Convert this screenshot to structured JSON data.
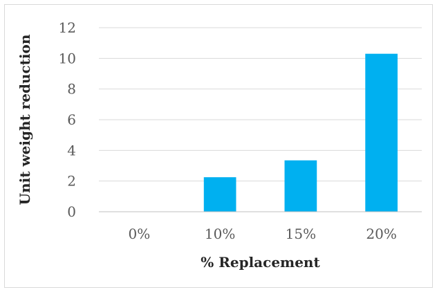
{
  "chart_data": {
    "type": "bar",
    "categories": [
      "0%",
      "10%",
      "15%",
      "20%"
    ],
    "values": [
      0,
      2.25,
      3.35,
      10.3
    ],
    "xlabel": "% Replacement",
    "ylabel": "Unit weight reduction",
    "ylim": [
      0,
      12
    ],
    "yticks": [
      "0",
      "2",
      "4",
      "6",
      "8",
      "10",
      "12"
    ],
    "grid": true,
    "legend": "none",
    "colors": {
      "bar": "#00B0F0",
      "grid": "#d9d9d9",
      "axis": "#bfbfbf"
    }
  }
}
